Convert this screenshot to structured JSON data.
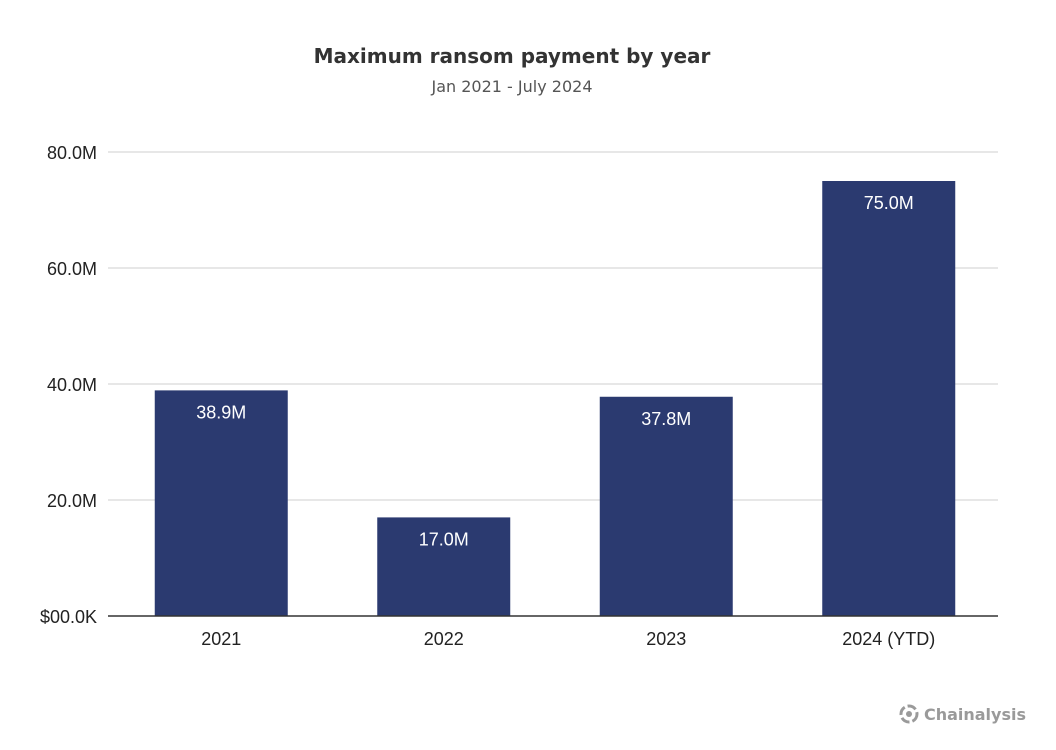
{
  "colors": {
    "bar": "#2b3a70",
    "bar_label": "#ffffff",
    "grid": "#cfcfcf",
    "axis": "#333333",
    "brand": "#9a9a9a"
  },
  "chart_data": {
    "type": "bar",
    "title": "Maximum ransom payment by year",
    "subtitle": "Jan 2021 - July 2024",
    "categories": [
      "2021",
      "2022",
      "2023",
      "2024 (YTD)"
    ],
    "values": [
      38.9,
      17.0,
      37.8,
      75.0
    ],
    "value_labels": [
      "38.9M",
      "17.0M",
      "37.8M",
      "75.0M"
    ],
    "value_unit": "M",
    "ylim": [
      0,
      80
    ],
    "yticks": [
      0,
      20,
      40,
      60,
      80
    ],
    "ytick_labels": [
      "$00.0K",
      "20.0M",
      "40.0M",
      "60.0M",
      "80.0M"
    ],
    "grid": true,
    "legend": "none"
  },
  "brand": {
    "name": "Chainalysis",
    "icon": "chainalysis-logo-icon"
  }
}
